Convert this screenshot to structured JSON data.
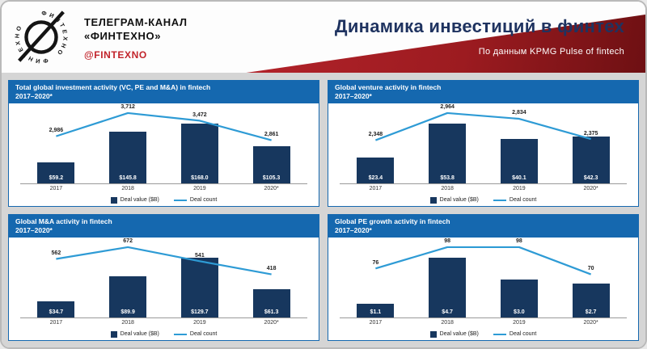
{
  "header": {
    "channel_line1": "ТЕЛЕГРАМ-КАНАЛ",
    "channel_line2": "«ФИНТЕХНО»",
    "handle": "@FINTEXNO",
    "title": "Динамика инвестиций в финтех",
    "subtitle": "По данным KPMG Pulse of fintech",
    "logo_text": "ФИНТЕХНО"
  },
  "colors": {
    "bar": "#17375e",
    "line": "#2e9bd5",
    "panel_header": "#1568af",
    "red_band_dark": "#6e1013",
    "red_band_light": "#b3232a",
    "title_navy": "#1f3360"
  },
  "chart_data": [
    {
      "type": "bar",
      "title": "Total global investment activity (VC, PE and M&A) in fintech",
      "subtitle": "2017–2020*",
      "categories": [
        "2017",
        "2018",
        "2019",
        "2020*"
      ],
      "series": [
        {
          "name": "Deal value ($B)",
          "type": "bar",
          "values": [
            59.2,
            145.8,
            168.0,
            105.3
          ],
          "labels": [
            "$59.2",
            "$145.8",
            "$168.0",
            "$105.3"
          ]
        },
        {
          "name": "Deal count",
          "type": "line",
          "values": [
            2986,
            3712,
            3472,
            2861
          ],
          "labels": [
            "2,986",
            "3,712",
            "3,472",
            "2,861"
          ]
        }
      ],
      "legend": [
        "Deal value ($B)",
        "Deal count"
      ],
      "legend_position": "bottom"
    },
    {
      "type": "bar",
      "title": "Global venture activity in fintech",
      "subtitle": "2017–2020*",
      "categories": [
        "2017",
        "2018",
        "2019",
        "2020*"
      ],
      "series": [
        {
          "name": "Deal value ($B)",
          "type": "bar",
          "values": [
            23.4,
            53.8,
            40.1,
            42.3
          ],
          "labels": [
            "$23.4",
            "$53.8",
            "$40.1",
            "$42.3"
          ]
        },
        {
          "name": "Deal count",
          "type": "line",
          "values": [
            2348,
            2964,
            2834,
            2375
          ],
          "labels": [
            "2,348",
            "2,964",
            "2,834",
            "2,375"
          ]
        }
      ],
      "legend": [
        "Deal value ($B)",
        "Deal count"
      ],
      "legend_position": "bottom"
    },
    {
      "type": "bar",
      "title": "Global M&A activity in fintech",
      "subtitle": "2017–2020*",
      "categories": [
        "2017",
        "2018",
        "2019",
        "2020*"
      ],
      "series": [
        {
          "name": "Deal value ($B)",
          "type": "bar",
          "values": [
            34.7,
            89.9,
            129.7,
            61.3
          ],
          "labels": [
            "$34.7",
            "$89.9",
            "$129.7",
            "$61.3"
          ]
        },
        {
          "name": "Deal count",
          "type": "line",
          "values": [
            562,
            672,
            541,
            418
          ],
          "labels": [
            "562",
            "672",
            "541",
            "418"
          ]
        }
      ],
      "legend": [
        "Deal value ($B)",
        "Deal count"
      ],
      "legend_position": "bottom"
    },
    {
      "type": "bar",
      "title": "Global PE growth activity in fintech",
      "subtitle": "2017–2020*",
      "categories": [
        "2017",
        "2018",
        "2019",
        "2020*"
      ],
      "series": [
        {
          "name": "Deal value ($B)",
          "type": "bar",
          "values": [
            1.1,
            4.7,
            3.0,
            2.7
          ],
          "labels": [
            "$1.1",
            "$4.7",
            "$3.0",
            "$2.7"
          ]
        },
        {
          "name": "Deal count",
          "type": "line",
          "values": [
            76,
            98,
            98,
            70
          ],
          "labels": [
            "76",
            "98",
            "98",
            "70"
          ]
        }
      ],
      "legend": [
        "Deal value ($B)",
        "Deal count"
      ],
      "legend_position": "bottom"
    }
  ]
}
